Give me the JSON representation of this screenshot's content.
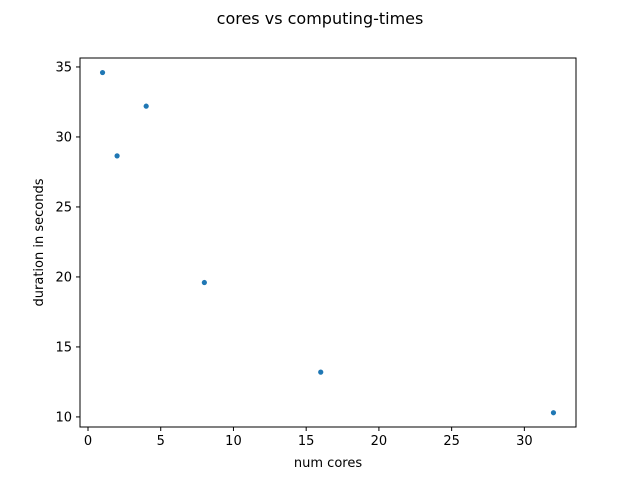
{
  "chart_data": {
    "type": "scatter",
    "title": "cores vs computing-times",
    "xlabel": "num cores",
    "ylabel": "duration in seconds",
    "xlim": [
      -0.55,
      33.55
    ],
    "ylim": [
      9.28,
      35.64
    ],
    "xticks": [
      0,
      5,
      10,
      15,
      20,
      25,
      30
    ],
    "yticks": [
      10,
      15,
      20,
      25,
      30,
      35
    ],
    "grid": false,
    "marker_color": "#1f77b4",
    "points": [
      {
        "x": 1,
        "y": 34.6
      },
      {
        "x": 2,
        "y": 28.65
      },
      {
        "x": 4,
        "y": 32.2
      },
      {
        "x": 8,
        "y": 19.6
      },
      {
        "x": 16,
        "y": 13.2
      },
      {
        "x": 32,
        "y": 10.3
      }
    ]
  }
}
